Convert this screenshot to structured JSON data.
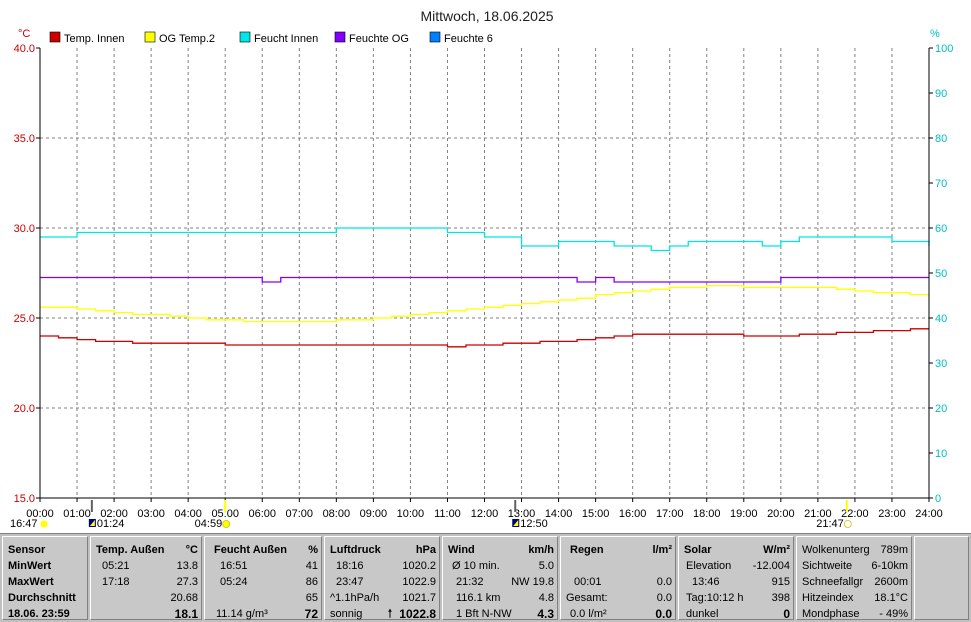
{
  "chart_data": {
    "type": "line",
    "title": "Mittwoch, 18.06.2025",
    "left_unit": "°C",
    "right_unit": "%",
    "ylim_left": [
      15,
      40
    ],
    "ylim_right": [
      0,
      100
    ],
    "yticks_left": [
      "15.0",
      "20.0",
      "25.0",
      "30.0",
      "35.0",
      "40.0"
    ],
    "yticks_right": [
      "0",
      "10",
      "20",
      "30",
      "40",
      "50",
      "60",
      "70",
      "80",
      "90",
      "100"
    ],
    "xlim": [
      0,
      24
    ],
    "xticks": [
      "00:00",
      "01:00",
      "02:00",
      "03:00",
      "04:00",
      "05:00",
      "06:00",
      "07:00",
      "08:00",
      "09:00",
      "10:00",
      "11:00",
      "12:00",
      "13:00",
      "14:00",
      "15:00",
      "16:00",
      "17:00",
      "18:00",
      "19:00",
      "20:00",
      "21:00",
      "22:00",
      "23:00",
      "24:00"
    ],
    "grid": true,
    "legend": "top-left",
    "series": [
      {
        "name": "Temp. Innen",
        "axis": "left",
        "color": "#cc0000",
        "x": [
          0,
          0.5,
          1,
          1.5,
          2,
          2.5,
          3,
          3.5,
          4,
          4.5,
          5,
          5.5,
          6,
          6.5,
          7,
          7.5,
          8,
          8.5,
          9,
          9.5,
          10,
          10.5,
          11,
          11.5,
          12,
          12.5,
          13,
          13.5,
          14,
          14.5,
          15,
          15.5,
          16,
          16.5,
          17,
          17.5,
          18,
          18.5,
          19,
          19.5,
          20,
          20.5,
          21,
          21.5,
          22,
          22.5,
          23,
          23.5,
          24
        ],
        "y": [
          24.0,
          23.9,
          23.8,
          23.7,
          23.7,
          23.6,
          23.6,
          23.6,
          23.6,
          23.6,
          23.5,
          23.5,
          23.5,
          23.5,
          23.5,
          23.5,
          23.5,
          23.5,
          23.5,
          23.5,
          23.5,
          23.5,
          23.4,
          23.5,
          23.5,
          23.6,
          23.6,
          23.7,
          23.7,
          23.8,
          23.9,
          24.0,
          24.1,
          24.1,
          24.1,
          24.1,
          24.1,
          24.1,
          24.0,
          24.0,
          24.0,
          24.1,
          24.1,
          24.2,
          24.2,
          24.3,
          24.3,
          24.4,
          24.4
        ]
      },
      {
        "name": "OG Temp.2",
        "axis": "left",
        "color": "#ffff00",
        "x": [
          0,
          0.5,
          1,
          1.5,
          2,
          2.5,
          3,
          3.5,
          4,
          4.5,
          5,
          5.5,
          6,
          6.5,
          7,
          7.5,
          8,
          8.5,
          9,
          9.5,
          10,
          10.5,
          11,
          11.5,
          12,
          12.5,
          13,
          13.5,
          14,
          14.5,
          15,
          15.5,
          16,
          16.5,
          17,
          17.5,
          18,
          18.5,
          19,
          19.5,
          20,
          20.5,
          21,
          21.5,
          22,
          22.5,
          23,
          23.5,
          24
        ],
        "y": [
          25.6,
          25.6,
          25.5,
          25.4,
          25.3,
          25.2,
          25.2,
          25.1,
          25.0,
          24.9,
          24.9,
          24.8,
          24.8,
          24.8,
          24.8,
          24.8,
          24.9,
          24.9,
          25.0,
          25.1,
          25.2,
          25.3,
          25.4,
          25.5,
          25.6,
          25.7,
          25.8,
          25.9,
          26.0,
          26.1,
          26.3,
          26.4,
          26.5,
          26.6,
          26.7,
          26.7,
          26.8,
          26.8,
          26.7,
          26.7,
          26.7,
          26.7,
          26.7,
          26.6,
          26.5,
          26.4,
          26.4,
          26.3,
          26.2
        ]
      },
      {
        "name": "Feucht Innen",
        "axis": "right",
        "color": "#00e5e5",
        "x": [
          0,
          0.5,
          1,
          1.5,
          2,
          2.5,
          3,
          3.5,
          4,
          4.5,
          5,
          5.5,
          6,
          6.5,
          7,
          7.5,
          8,
          8.5,
          9,
          9.5,
          10,
          10.5,
          11,
          11.5,
          12,
          12.5,
          13,
          13.5,
          14,
          14.5,
          15,
          15.5,
          16,
          16.5,
          17,
          17.5,
          18,
          18.5,
          19,
          19.5,
          20,
          20.5,
          21,
          21.5,
          22,
          22.5,
          23,
          23.5,
          24
        ],
        "y": [
          58,
          58,
          59,
          59,
          59,
          59,
          59,
          59,
          59,
          59,
          59,
          59,
          59,
          59,
          59,
          59,
          60,
          60,
          60,
          60,
          60,
          60,
          59,
          59,
          58,
          58,
          56,
          56,
          57,
          57,
          57,
          56,
          56,
          55,
          56,
          57,
          57,
          57,
          57,
          56,
          57,
          58,
          58,
          58,
          58,
          58,
          57,
          57,
          56
        ]
      },
      {
        "name": "Feuchte OG",
        "axis": "right",
        "color": "#8000ff",
        "x": [
          0,
          0.5,
          1,
          1.5,
          2,
          2.5,
          3,
          3.5,
          4,
          4.5,
          5,
          5.5,
          6,
          6.5,
          7,
          7.5,
          8,
          8.5,
          9,
          9.5,
          10,
          10.5,
          11,
          11.5,
          12,
          12.5,
          13,
          13.5,
          14,
          14.5,
          15,
          15.5,
          16,
          16.5,
          17,
          17.5,
          18,
          18.5,
          19,
          19.5,
          20,
          20.5,
          21,
          21.5,
          22,
          22.5,
          23,
          23.5,
          24
        ],
        "y": [
          49,
          49,
          49,
          49,
          49,
          49,
          49,
          49,
          49,
          49,
          49,
          49,
          48,
          49,
          49,
          49,
          49,
          49,
          49,
          49,
          49,
          49,
          49,
          49,
          49,
          49,
          49,
          49,
          49,
          48,
          49,
          48,
          48,
          48,
          48,
          48,
          48,
          48,
          48,
          48,
          49,
          49,
          49,
          49,
          49,
          49,
          49,
          49,
          49
        ]
      },
      {
        "name": "Feuchte 6",
        "axis": "right",
        "color": "#0080ff",
        "x": [],
        "y": []
      }
    ],
    "markers": [
      {
        "label": "16:47",
        "x": 0
      },
      {
        "label": "01:24",
        "x": 1.4
      },
      {
        "label": "04:59",
        "x": 5.0
      },
      {
        "label": "12:50",
        "x": 12.83
      },
      {
        "label": "21:47",
        "x": 21.78
      }
    ]
  },
  "panels": {
    "sensor": {
      "header": "Sensor",
      "min": "MinWert",
      "max": "MaxWert",
      "avg": "Durchschnitt",
      "datetime": "18.06. 23:59"
    },
    "temp": {
      "header": "Temp. Außen",
      "unit": "°C",
      "min_time": "05:21",
      "min_val": "13.8",
      "max_time": "17:18",
      "max_val": "27.3",
      "avg": "20.68",
      "current": "18.1"
    },
    "humidity": {
      "header": "Feucht Außen",
      "unit": "%",
      "min_time": "16:51",
      "min_val": "41",
      "max_time": "05:24",
      "max_val": "86",
      "avg": "65",
      "abs": "11.14 g/m³",
      "current": "72"
    },
    "pressure": {
      "header": "Luftdruck",
      "unit": "hPa",
      "min_time": "18:16",
      "min_val": "1020.2",
      "max_time": "23:47",
      "max_val": "1022.9",
      "trend": "^1.1hPa/h",
      "trend_val": "1021.7",
      "forecast": "sonnig",
      "current": "1022.8"
    },
    "wind": {
      "header": "Wind",
      "unit": "km/h",
      "avg_label": "Ø 10 min.",
      "avg_val": "5.0",
      "max_time": "21:32",
      "max_val": "NW 19.8",
      "dist": "116.1 km",
      "dist_val": "4.8",
      "bft": "1 Bft N-NW",
      "current": "4.3"
    },
    "rain": {
      "header": "Regen",
      "unit": "l/m²",
      "time": "00:01",
      "time_val": "0.0",
      "total_label": "Gesamt:",
      "total_val": "0.0",
      "rate": "0.0 l/m²",
      "current": "0.0"
    },
    "solar": {
      "header": "Solar",
      "unit": "W/m²",
      "elev_label": "Elevation",
      "elev_val": "-12.004",
      "max_time": "13:46",
      "max_val": "915",
      "day_label": "Tag:10:12 h",
      "day_val": "398",
      "state": "dunkel",
      "current": "0"
    },
    "misc": {
      "r1l": "Wolkenunterg",
      "r1v": "789m",
      "r2l": "Sichtweite",
      "r2v": "6-10km",
      "r3l": "Schneefallgr",
      "r3v": "2600m",
      "r4l": "Hitzeindex",
      "r4v": "18.1°C",
      "r5l": "Mondphase",
      "r5v": "- 49%"
    }
  }
}
